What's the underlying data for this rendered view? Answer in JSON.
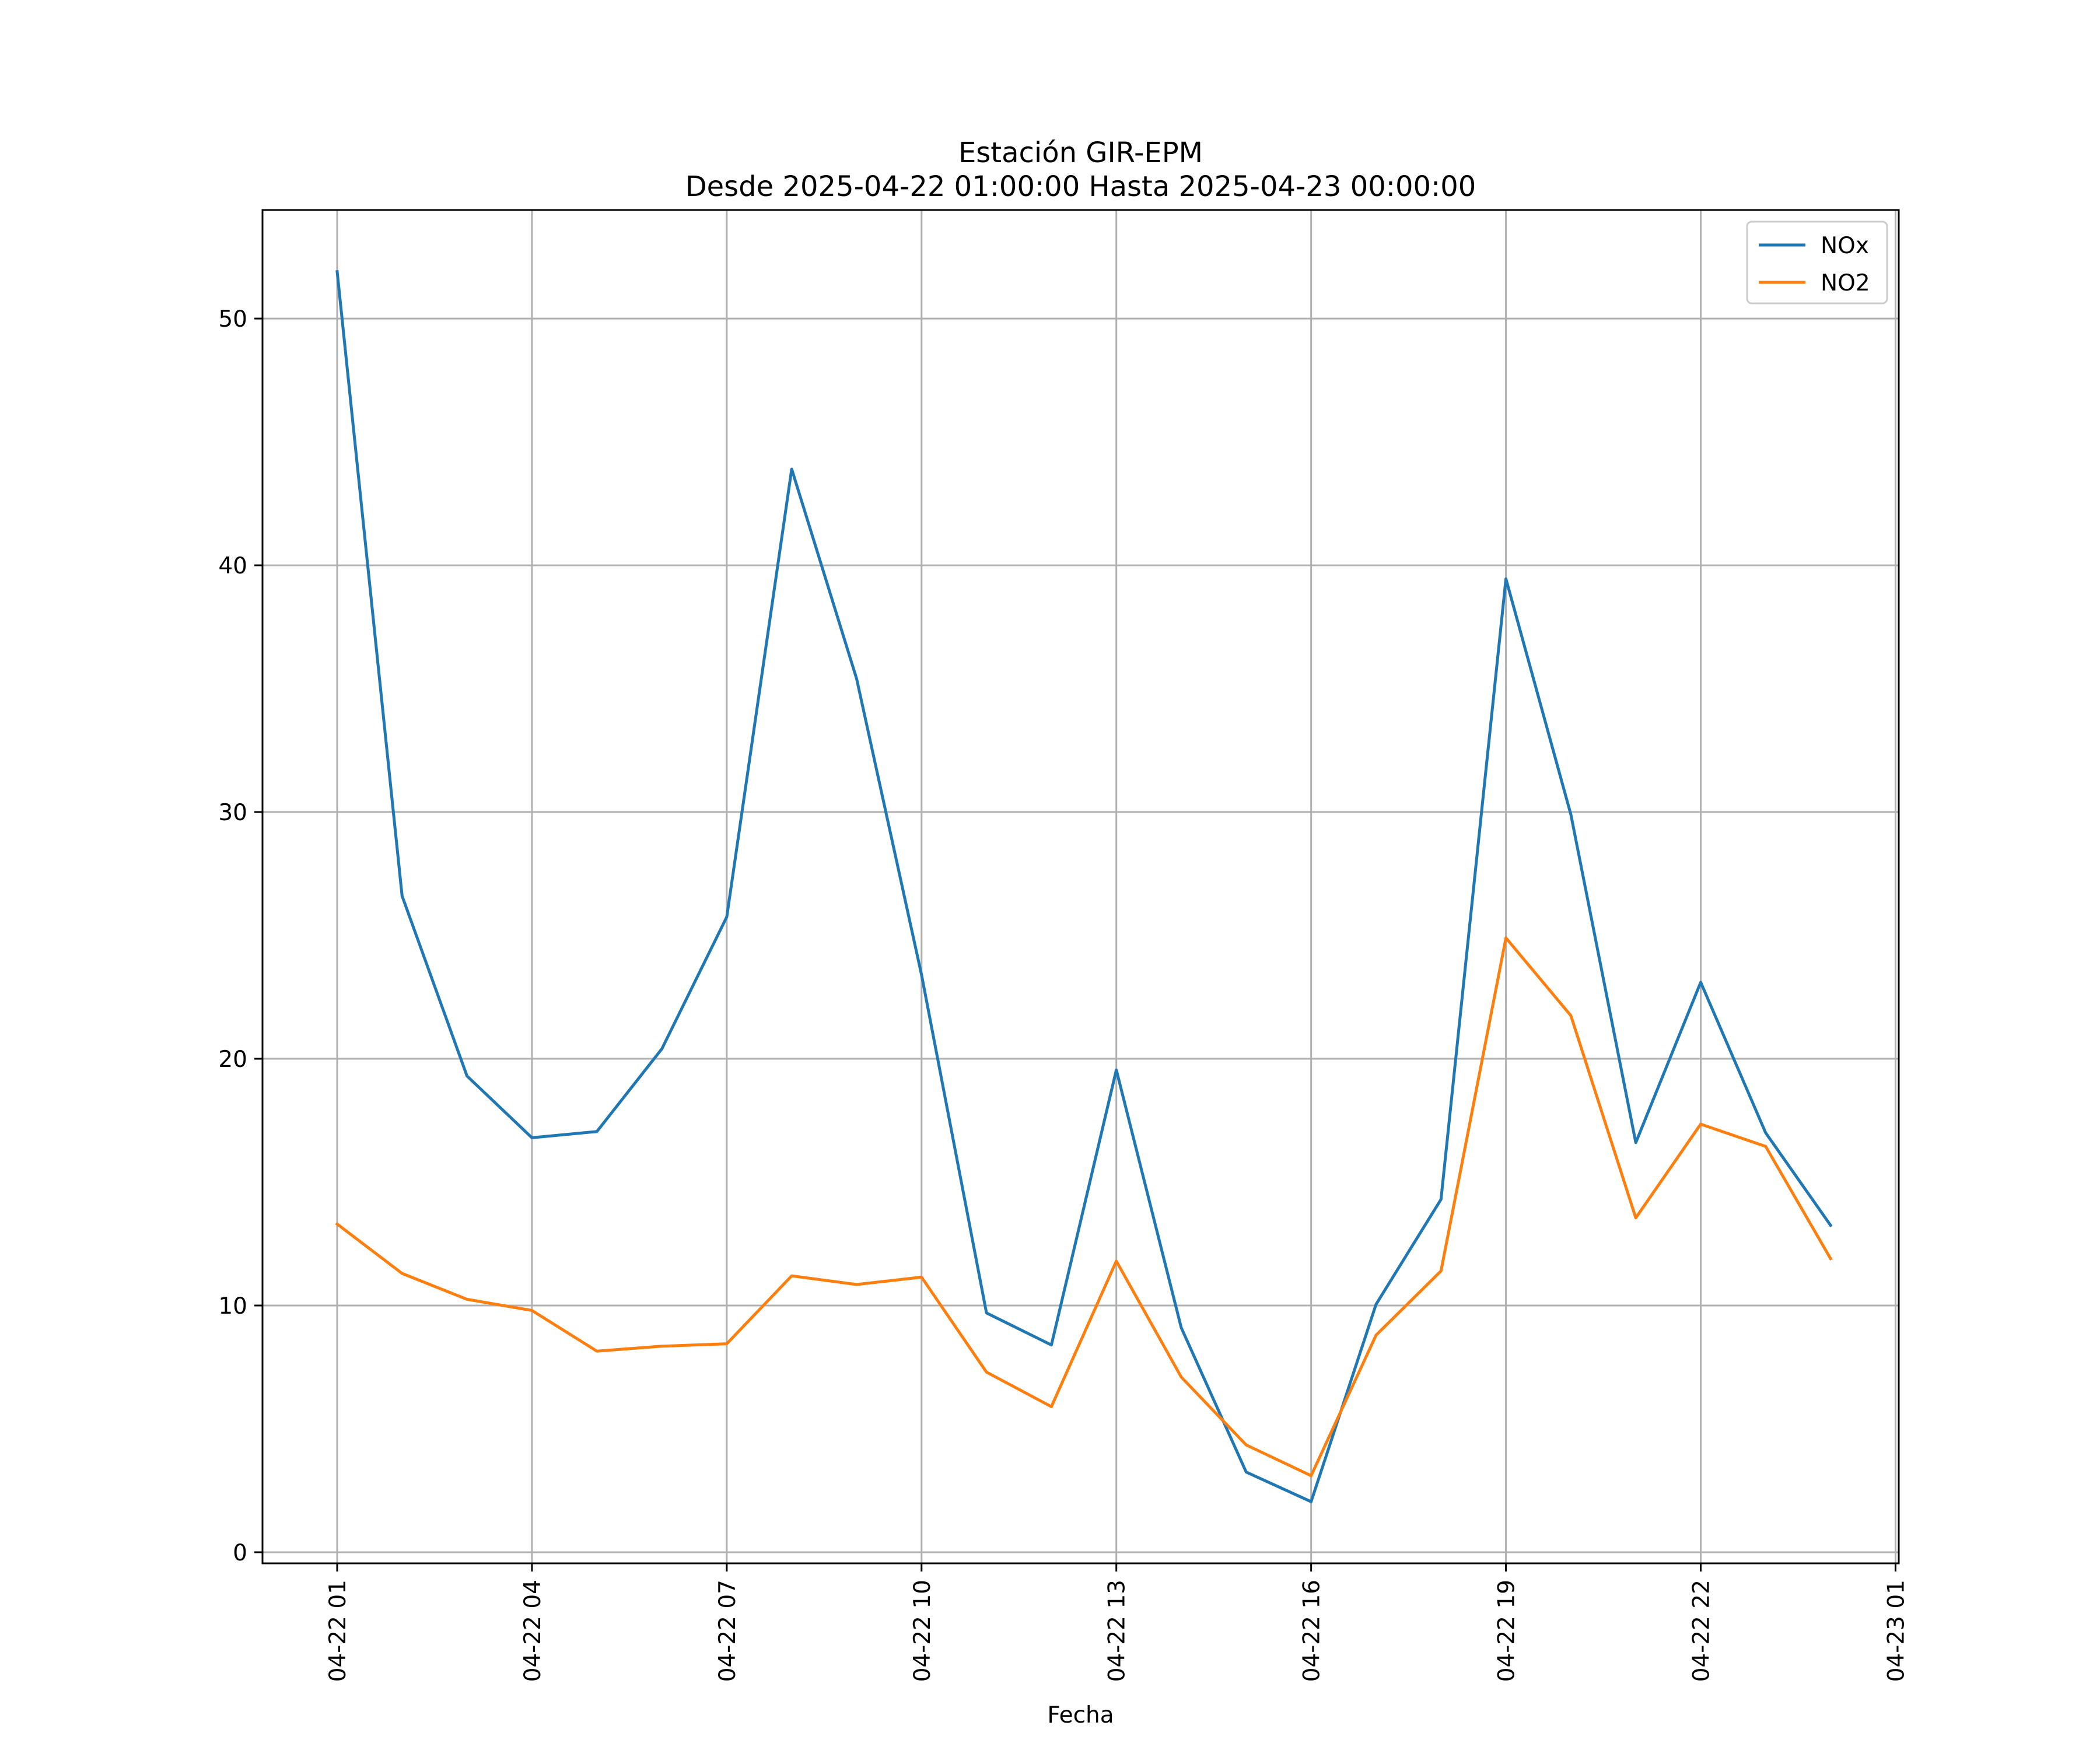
{
  "chart_data": {
    "type": "line",
    "title": "Estación GIR-EPM",
    "subtitle": "Desde 2025-04-22 01:00:00 Hasta 2025-04-23 00:00:00",
    "xlabel": "Fecha",
    "ylabel": "",
    "x": [
      "2025-04-22 01:00",
      "2025-04-22 02:00",
      "2025-04-22 03:00",
      "2025-04-22 04:00",
      "2025-04-22 05:00",
      "2025-04-22 06:00",
      "2025-04-22 07:00",
      "2025-04-22 08:00",
      "2025-04-22 09:00",
      "2025-04-22 10:00",
      "2025-04-22 11:00",
      "2025-04-22 12:00",
      "2025-04-22 13:00",
      "2025-04-22 14:00",
      "2025-04-22 15:00",
      "2025-04-22 16:00",
      "2025-04-22 17:00",
      "2025-04-22 18:00",
      "2025-04-22 19:00",
      "2025-04-22 20:00",
      "2025-04-22 21:00",
      "2025-04-22 22:00",
      "2025-04-22 23:00",
      "2025-04-23 00:00"
    ],
    "x_ticks": [
      "04-22 01",
      "04-22 04",
      "04-22 07",
      "04-22 10",
      "04-22 13",
      "04-22 16",
      "04-22 19",
      "04-22 22",
      "04-23 01"
    ],
    "x_tick_hours": [
      1,
      4,
      7,
      10,
      13,
      16,
      19,
      22,
      25
    ],
    "xlim_hours": [
      -0.15,
      25.05
    ],
    "y_ticks": [
      0,
      10,
      20,
      30,
      40,
      50
    ],
    "ylim": [
      -0.45,
      54.4
    ],
    "grid": true,
    "legend_position": "upper right",
    "series": [
      {
        "name": "NOx",
        "color": "#1f77b4",
        "values": [
          51.9,
          26.6,
          19.3,
          16.8,
          17.05,
          20.4,
          25.75,
          43.9,
          35.4,
          23.4,
          9.7,
          8.4,
          19.55,
          9.1,
          3.25,
          2.05,
          10.05,
          14.3,
          39.45,
          29.9,
          16.6,
          23.1,
          17.0,
          13.25
        ]
      },
      {
        "name": "NO2",
        "color": "#ff7f0e",
        "values": [
          13.3,
          11.3,
          10.25,
          9.8,
          8.15,
          8.35,
          8.45,
          11.2,
          10.85,
          11.15,
          7.3,
          5.9,
          11.8,
          7.1,
          4.35,
          3.1,
          8.8,
          11.4,
          24.9,
          21.75,
          13.55,
          17.35,
          16.45,
          11.9
        ]
      }
    ]
  }
}
